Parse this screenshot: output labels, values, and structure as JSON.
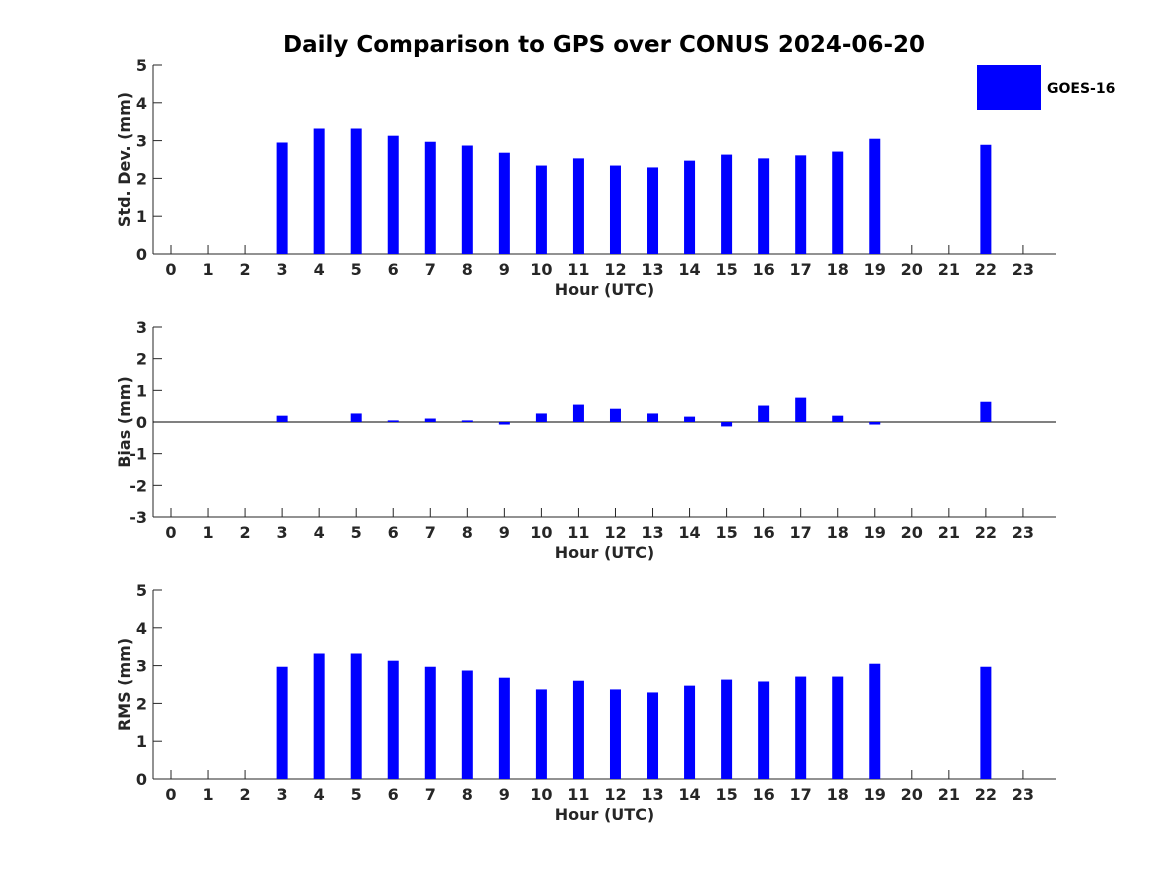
{
  "title": "Daily Comparison to GPS over CONUS 2024-06-20",
  "legend": {
    "label": "GOES-16",
    "placement": "top-right"
  },
  "colors": {
    "bar": "#0000ff",
    "axis": "#262626",
    "text": "#262626"
  },
  "chart_data": [
    {
      "type": "bar",
      "name": "std-dev",
      "xlabel": "Hour (UTC)",
      "ylabel": "Std. Dev. (mm)",
      "ylim": [
        0,
        5
      ],
      "yticks": [
        0,
        1,
        2,
        3,
        4,
        5
      ],
      "categories": [
        0,
        1,
        2,
        3,
        4,
        5,
        6,
        7,
        8,
        9,
        10,
        11,
        12,
        13,
        14,
        15,
        16,
        17,
        18,
        19,
        20,
        21,
        22,
        23
      ],
      "series": [
        {
          "name": "GOES-16",
          "values": [
            null,
            null,
            null,
            2.95,
            3.32,
            3.32,
            3.13,
            2.97,
            2.87,
            2.68,
            2.34,
            2.53,
            2.34,
            2.29,
            2.47,
            2.63,
            2.53,
            2.61,
            2.71,
            3.05,
            null,
            null,
            2.89,
            null
          ]
        }
      ]
    },
    {
      "type": "bar",
      "name": "bias",
      "xlabel": "Hour (UTC)",
      "ylabel": "Bias (mm)",
      "ylim": [
        -3,
        3
      ],
      "yticks": [
        -3,
        -2,
        -1,
        0,
        1,
        2,
        3
      ],
      "categories": [
        0,
        1,
        2,
        3,
        4,
        5,
        6,
        7,
        8,
        9,
        10,
        11,
        12,
        13,
        14,
        15,
        16,
        17,
        18,
        19,
        20,
        21,
        22,
        23
      ],
      "series": [
        {
          "name": "GOES-16",
          "values": [
            null,
            null,
            null,
            0.2,
            0.0,
            0.27,
            0.05,
            0.11,
            0.05,
            -0.08,
            0.27,
            0.55,
            0.42,
            0.27,
            0.17,
            -0.14,
            0.52,
            0.77,
            0.2,
            -0.08,
            null,
            null,
            0.64,
            null
          ]
        }
      ]
    },
    {
      "type": "bar",
      "name": "rms",
      "xlabel": "Hour (UTC)",
      "ylabel": "RMS (mm)",
      "ylim": [
        0,
        5
      ],
      "yticks": [
        0,
        1,
        2,
        3,
        4,
        5
      ],
      "categories": [
        0,
        1,
        2,
        3,
        4,
        5,
        6,
        7,
        8,
        9,
        10,
        11,
        12,
        13,
        14,
        15,
        16,
        17,
        18,
        19,
        20,
        21,
        22,
        23
      ],
      "series": [
        {
          "name": "GOES-16",
          "values": [
            null,
            null,
            null,
            2.97,
            3.32,
            3.32,
            3.13,
            2.97,
            2.87,
            2.68,
            2.37,
            2.6,
            2.37,
            2.29,
            2.47,
            2.63,
            2.58,
            2.71,
            2.71,
            3.05,
            null,
            null,
            2.97,
            null
          ]
        }
      ]
    }
  ]
}
